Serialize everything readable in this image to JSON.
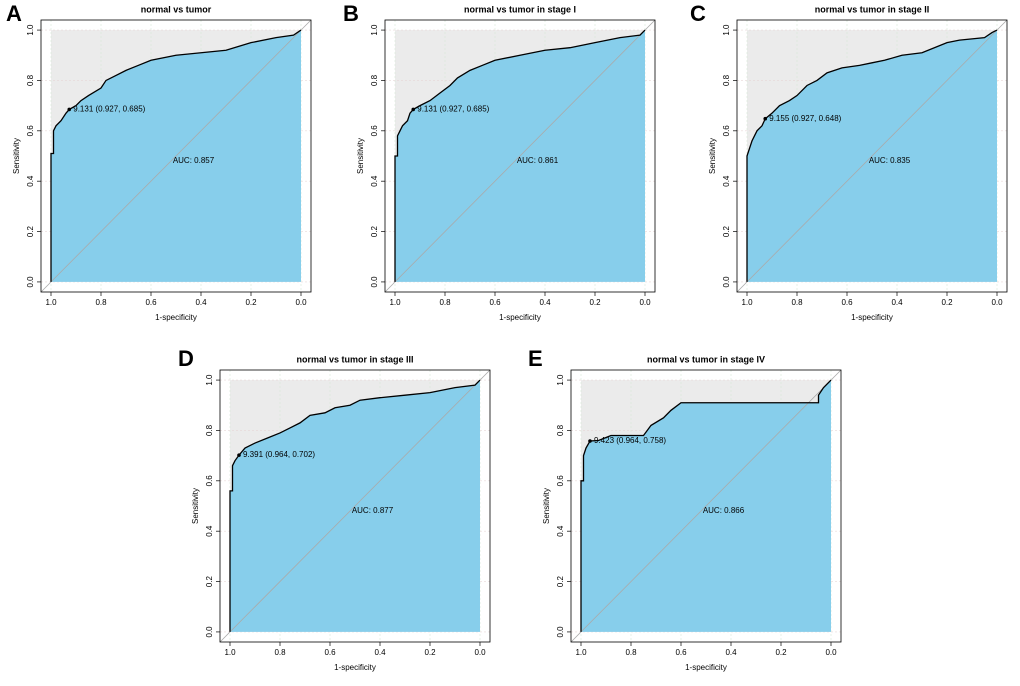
{
  "chart_data": [
    {
      "type": "roc",
      "panel": "A",
      "title": "normal vs tumor",
      "x_label": "1-specificity",
      "y_label": "Sensitivity",
      "x": [
        1,
        1,
        0.99,
        0.99,
        0.98,
        0.96,
        0.94,
        0.927,
        0.9,
        0.88,
        0.85,
        0.8,
        0.78,
        0.74,
        0.7,
        0.65,
        0.6,
        0.55,
        0.5,
        0.4,
        0.3,
        0.2,
        0.1,
        0.03,
        0
      ],
      "values": [
        0,
        0.51,
        0.51,
        0.6,
        0.62,
        0.64,
        0.67,
        0.685,
        0.7,
        0.72,
        0.74,
        0.77,
        0.8,
        0.82,
        0.84,
        0.86,
        0.88,
        0.89,
        0.9,
        0.91,
        0.92,
        0.95,
        0.97,
        0.98,
        1
      ],
      "cutoff_label": "9.131 (0.927, 0.685)",
      "cutoff_x": 0.927,
      "cutoff_y": 0.685,
      "auc_label": "AUC: 0.857",
      "xlim": [
        1.04,
        -0.04
      ],
      "ylim": [
        -0.04,
        1.04
      ],
      "xticks": [
        {
          "value": 1,
          "label": "1.0"
        },
        0.8,
        0.6,
        0.4,
        0.2,
        {
          "value": 0,
          "label": "0.0"
        }
      ],
      "yticks": [
        {
          "value": 0,
          "label": "0.0"
        },
        0.2,
        0.4,
        0.6,
        0.8,
        {
          "value": 1,
          "label": "1.0"
        }
      ],
      "grid": true,
      "color": "#000000",
      "fill_color": "#87CEEB",
      "background_color": "#EBEBEB"
    },
    {
      "type": "roc",
      "panel": "B",
      "title": "normal vs tumor in stage I",
      "x_label": "1-specificity",
      "y_label": "Sensitivity",
      "x": [
        1,
        1,
        0.99,
        0.99,
        0.98,
        0.97,
        0.95,
        0.94,
        0.927,
        0.9,
        0.86,
        0.82,
        0.78,
        0.75,
        0.7,
        0.65,
        0.6,
        0.5,
        0.4,
        0.3,
        0.2,
        0.1,
        0.02,
        0
      ],
      "values": [
        0,
        0.5,
        0.5,
        0.58,
        0.6,
        0.62,
        0.64,
        0.67,
        0.685,
        0.7,
        0.72,
        0.75,
        0.78,
        0.81,
        0.84,
        0.86,
        0.88,
        0.9,
        0.92,
        0.93,
        0.95,
        0.97,
        0.98,
        1
      ],
      "cutoff_label": "9.131 (0.927, 0.685)",
      "cutoff_x": 0.927,
      "cutoff_y": 0.685,
      "auc_label": "AUC: 0.861",
      "xlim": [
        1.04,
        -0.04
      ],
      "ylim": [
        -0.04,
        1.04
      ],
      "xticks": [
        {
          "value": 1,
          "label": "1.0"
        },
        0.8,
        0.6,
        0.4,
        0.2,
        {
          "value": 0,
          "label": "0.0"
        }
      ],
      "yticks": [
        {
          "value": 0,
          "label": "0.0"
        },
        0.2,
        0.4,
        0.6,
        0.8,
        {
          "value": 1,
          "label": "1.0"
        }
      ],
      "grid": true,
      "color": "#000000",
      "fill_color": "#87CEEB",
      "background_color": "#EBEBEB"
    },
    {
      "type": "roc",
      "panel": "C",
      "title": "normal vs tumor in stage II",
      "x_label": "1-specificity",
      "y_label": "Sensitivity",
      "x": [
        1,
        1,
        0.99,
        0.98,
        0.96,
        0.94,
        0.927,
        0.9,
        0.87,
        0.83,
        0.8,
        0.76,
        0.72,
        0.68,
        0.62,
        0.55,
        0.5,
        0.45,
        0.38,
        0.3,
        0.2,
        0.15,
        0.05,
        0.02,
        0
      ],
      "values": [
        0,
        0.5,
        0.53,
        0.56,
        0.6,
        0.62,
        0.648,
        0.67,
        0.7,
        0.72,
        0.74,
        0.78,
        0.8,
        0.83,
        0.85,
        0.86,
        0.87,
        0.88,
        0.9,
        0.91,
        0.95,
        0.96,
        0.97,
        0.99,
        1
      ],
      "cutoff_label": "9.155 (0.927, 0.648)",
      "cutoff_x": 0.927,
      "cutoff_y": 0.648,
      "auc_label": "AUC: 0.835",
      "xlim": [
        1.04,
        -0.04
      ],
      "ylim": [
        -0.04,
        1.04
      ],
      "xticks": [
        {
          "value": 1,
          "label": "1.0"
        },
        0.8,
        0.6,
        0.4,
        0.2,
        {
          "value": 0,
          "label": "0.0"
        }
      ],
      "yticks": [
        {
          "value": 0,
          "label": "0.0"
        },
        0.2,
        0.4,
        0.6,
        0.8,
        {
          "value": 1,
          "label": "1.0"
        }
      ],
      "grid": true,
      "color": "#000000",
      "fill_color": "#87CEEB",
      "background_color": "#EBEBEB"
    },
    {
      "type": "roc",
      "panel": "D",
      "title": "normal vs tumor in stage III",
      "x_label": "1-specificity",
      "y_label": "Sensitivity",
      "x": [
        1,
        1,
        0.99,
        0.99,
        0.98,
        0.964,
        0.94,
        0.9,
        0.85,
        0.8,
        0.76,
        0.72,
        0.68,
        0.62,
        0.58,
        0.52,
        0.48,
        0.4,
        0.3,
        0.2,
        0.1,
        0.02,
        0
      ],
      "values": [
        0,
        0.56,
        0.56,
        0.66,
        0.68,
        0.702,
        0.73,
        0.75,
        0.77,
        0.79,
        0.81,
        0.83,
        0.86,
        0.87,
        0.89,
        0.9,
        0.92,
        0.93,
        0.94,
        0.95,
        0.97,
        0.98,
        1
      ],
      "cutoff_label": "9.391 (0.964, 0.702)",
      "cutoff_x": 0.964,
      "cutoff_y": 0.702,
      "auc_label": "AUC: 0.877",
      "xlim": [
        1.04,
        -0.04
      ],
      "ylim": [
        -0.04,
        1.04
      ],
      "xticks": [
        {
          "value": 1,
          "label": "1.0"
        },
        0.8,
        0.6,
        0.4,
        0.2,
        {
          "value": 0,
          "label": "0.0"
        }
      ],
      "yticks": [
        {
          "value": 0,
          "label": "0.0"
        },
        0.2,
        0.4,
        0.6,
        0.8,
        {
          "value": 1,
          "label": "1.0"
        }
      ],
      "grid": true,
      "color": "#000000",
      "fill_color": "#87CEEB",
      "background_color": "#EBEBEB"
    },
    {
      "type": "roc",
      "panel": "E",
      "title": "normal vs tumor in stage IV",
      "x_label": "1-specificity",
      "y_label": "Sensitivity",
      "x": [
        1,
        1,
        0.99,
        0.99,
        0.98,
        0.964,
        0.93,
        0.88,
        0.75,
        0.72,
        0.67,
        0.64,
        0.6,
        0.1,
        0.05,
        0.05,
        0.03,
        0
      ],
      "values": [
        0,
        0.6,
        0.6,
        0.7,
        0.73,
        0.758,
        0.76,
        0.78,
        0.78,
        0.82,
        0.85,
        0.88,
        0.91,
        0.91,
        0.91,
        0.94,
        0.97,
        1
      ],
      "cutoff_label": "9.423 (0.964, 0.758)",
      "cutoff_x": 0.964,
      "cutoff_y": 0.758,
      "auc_label": "AUC: 0.866",
      "xlim": [
        1.04,
        -0.04
      ],
      "ylim": [
        -0.04,
        1.04
      ],
      "xticks": [
        {
          "value": 1,
          "label": "1.0"
        },
        0.8,
        0.6,
        0.4,
        0.2,
        {
          "value": 0,
          "label": "0.0"
        }
      ],
      "yticks": [
        {
          "value": 0,
          "label": "0.0"
        },
        0.2,
        0.4,
        0.6,
        0.8,
        {
          "value": 1,
          "label": "1.0"
        }
      ],
      "grid": true,
      "color": "#000000",
      "fill_color": "#87CEEB",
      "background_color": "#EBEBEB"
    }
  ]
}
